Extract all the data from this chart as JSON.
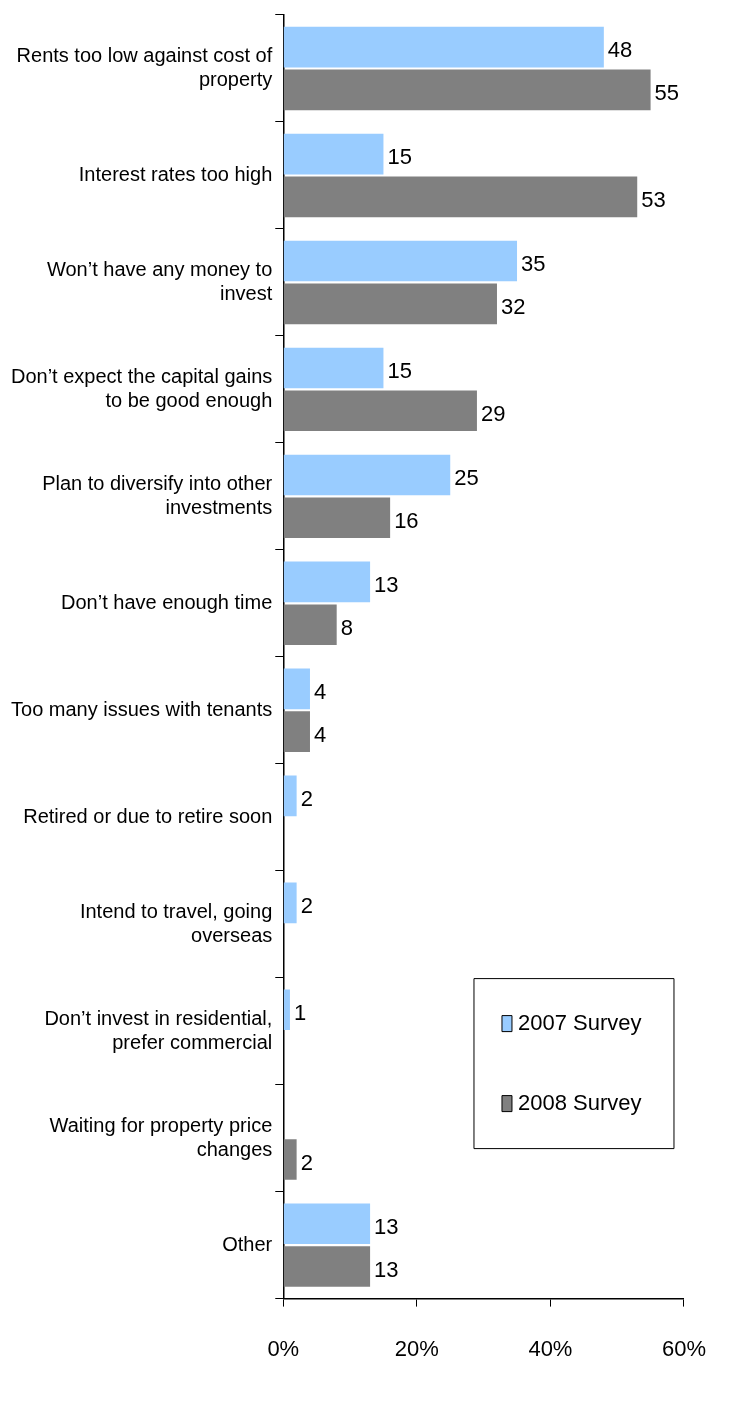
{
  "chart_data": {
    "type": "bar",
    "orientation": "horizontal",
    "categories": [
      "Rents too low against cost of property",
      "Interest rates too high",
      "Won’t have any money to invest",
      "Don’t expect the capital gains to be good enough",
      "Plan to diversify into other investments",
      "Don’t have enough time",
      "Too many issues with tenants",
      "Retired or due to retire soon",
      "Intend to travel, going overseas",
      "Don’t invest in residential, prefer commercial",
      "Waiting for property price changes",
      "Other"
    ],
    "series": [
      {
        "name": "2007 Survey",
        "color": "#99ccff",
        "values": [
          48,
          15,
          35,
          15,
          25,
          13,
          4,
          2,
          2,
          1,
          null,
          13
        ]
      },
      {
        "name": "2008 Survey",
        "color": "#808080",
        "values": [
          55,
          53,
          32,
          29,
          16,
          8,
          4,
          null,
          null,
          null,
          2,
          13
        ]
      }
    ],
    "xlim": [
      0,
      60
    ],
    "xticks": [
      {
        "value": 0,
        "label": "0%"
      },
      {
        "value": 20,
        "label": "20%"
      },
      {
        "value": 40,
        "label": "40%"
      },
      {
        "value": 60,
        "label": "60%"
      }
    ],
    "data_labels": true,
    "legend": "bottom right",
    "grid": false
  }
}
